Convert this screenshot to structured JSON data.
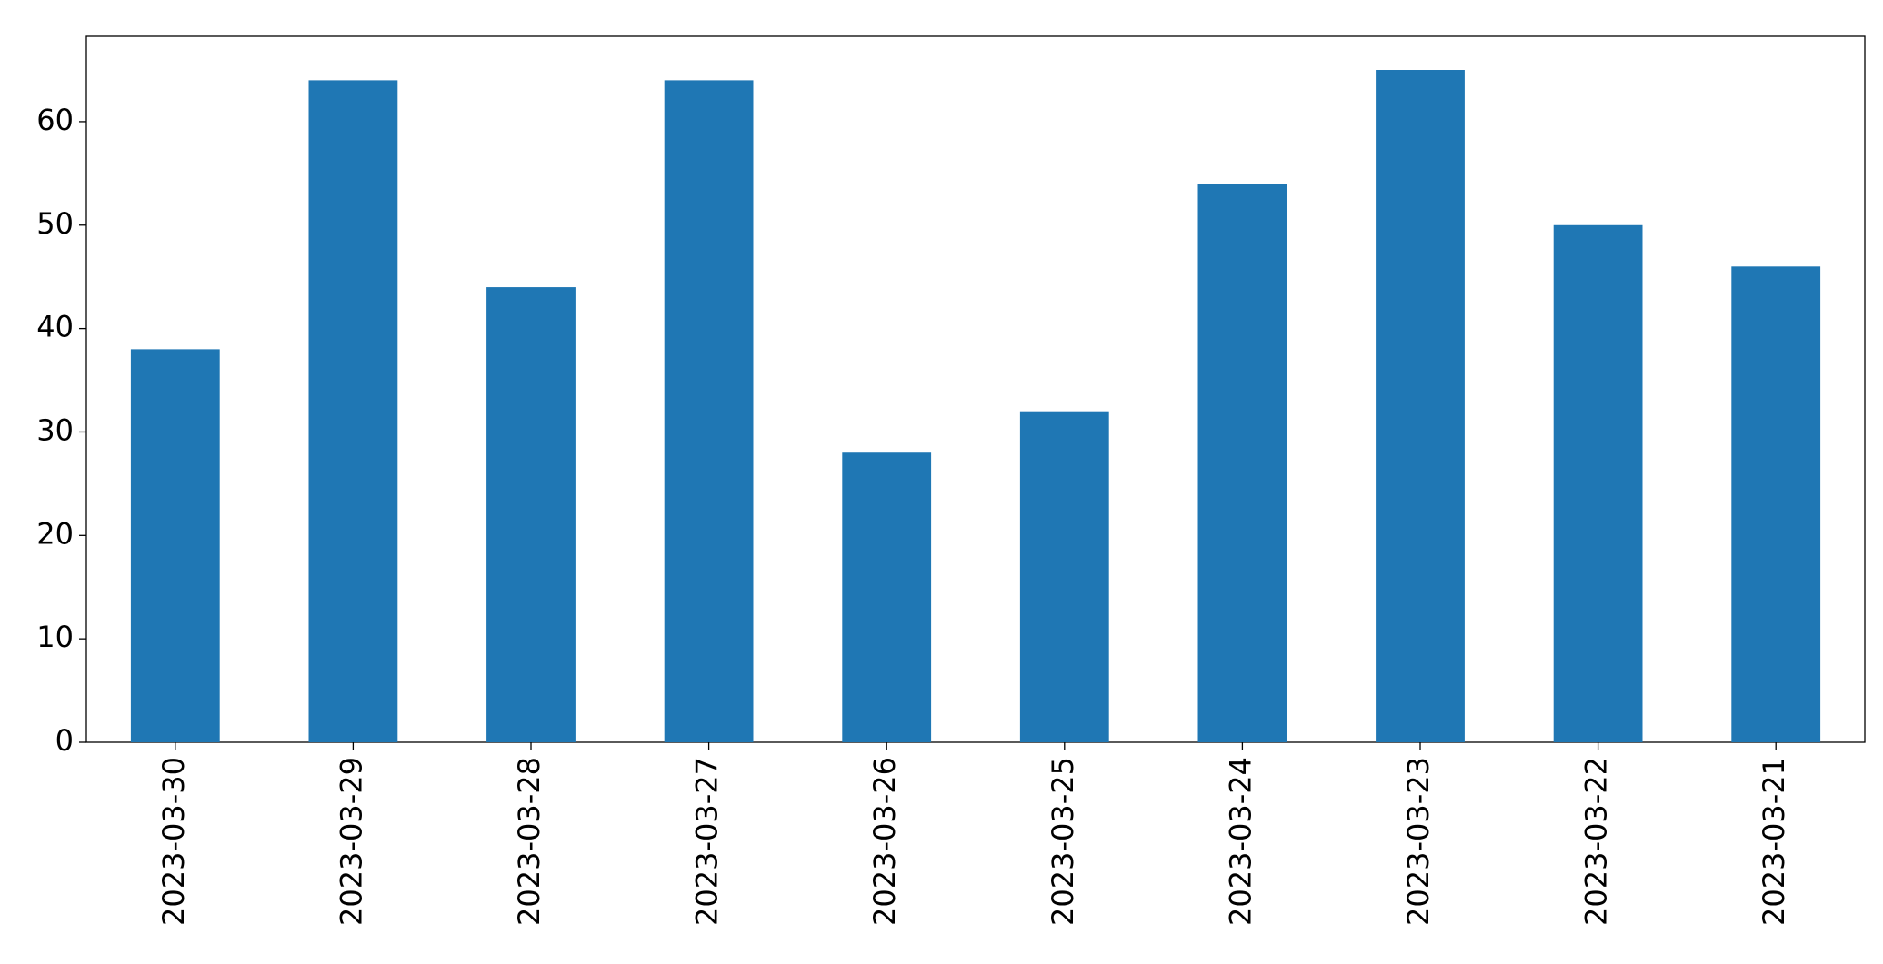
{
  "chart_data": {
    "type": "bar",
    "categories": [
      "2023-03-30",
      "2023-03-29",
      "2023-03-28",
      "2023-03-27",
      "2023-03-26",
      "2023-03-25",
      "2023-03-24",
      "2023-03-23",
      "2023-03-22",
      "2023-03-21"
    ],
    "values": [
      38,
      64,
      44,
      64,
      28,
      32,
      54,
      65,
      50,
      46
    ],
    "color": "#1f77b4",
    "ylim": [
      0,
      68.25
    ],
    "yticks": [
      0,
      10,
      20,
      30,
      40,
      50,
      60
    ],
    "grid": false
  }
}
